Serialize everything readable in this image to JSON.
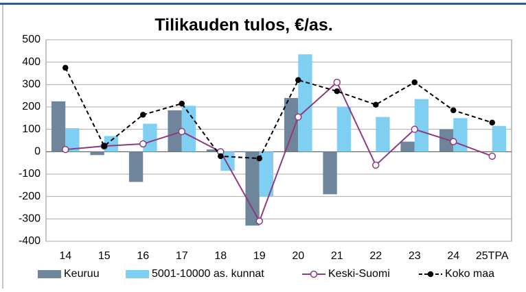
{
  "chart_data": {
    "type": "bar-line",
    "title": "Tilikauden tulos, €/as.",
    "categories": [
      "14",
      "15",
      "16",
      "17",
      "18",
      "19",
      "20",
      "21",
      "22",
      "23",
      "24",
      "25TPA"
    ],
    "series": [
      {
        "name": "Keuruu",
        "kind": "bar",
        "color": "#6e859c",
        "values": [
          225,
          -15,
          -135,
          185,
          10,
          -330,
          240,
          -190,
          null,
          45,
          100,
          null
        ]
      },
      {
        "name": "5001-10000 as. kunnat",
        "kind": "bar",
        "color": "#7fcff3",
        "values": [
          105,
          70,
          125,
          205,
          -85,
          -200,
          435,
          200,
          155,
          235,
          150,
          115
        ]
      },
      {
        "name": "Keski-Suomi",
        "kind": "line",
        "color": "#8e3a7f",
        "values": [
          10,
          25,
          35,
          90,
          0,
          -310,
          155,
          310,
          -60,
          100,
          45,
          -20
        ]
      },
      {
        "name": "Koko maa",
        "kind": "dashed-line",
        "color": "#000000",
        "values": [
          375,
          25,
          165,
          215,
          -20,
          -30,
          320,
          270,
          210,
          310,
          185,
          130
        ]
      }
    ],
    "ylim": [
      -400,
      500
    ],
    "yticks": [
      -400,
      -300,
      -200,
      -100,
      0,
      100,
      200,
      300,
      400,
      500
    ],
    "grid": true
  }
}
